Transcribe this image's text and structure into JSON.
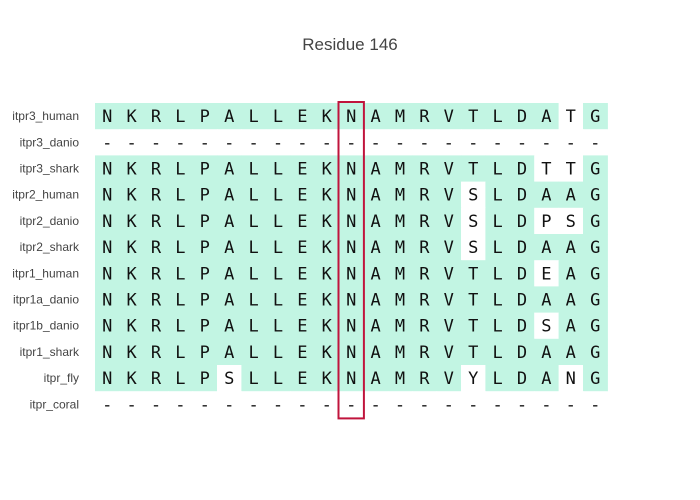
{
  "chart_data": {
    "type": "heatmap",
    "title": "Residue 146",
    "highlight_column": 10,
    "highlight_color": "#c0143c",
    "match_color": "#c2f5e3",
    "mismatch_color": "#ffffff",
    "sequences": [
      {
        "name": "itpr3_human",
        "residues": [
          "N",
          "K",
          "R",
          "L",
          "P",
          "A",
          "L",
          "L",
          "E",
          "K",
          "N",
          "A",
          "M",
          "R",
          "V",
          "T",
          "L",
          "D",
          "A",
          "T",
          "G"
        ],
        "match": [
          1,
          1,
          1,
          1,
          1,
          1,
          1,
          1,
          1,
          1,
          1,
          1,
          1,
          1,
          1,
          1,
          1,
          1,
          1,
          0,
          1
        ]
      },
      {
        "name": "itpr3_danio",
        "residues": [
          "-",
          "-",
          "-",
          "-",
          "-",
          "-",
          "-",
          "-",
          "-",
          "-",
          "-",
          "-",
          "-",
          "-",
          "-",
          "-",
          "-",
          "-",
          "-",
          "-",
          "-"
        ],
        "match": [
          0,
          0,
          0,
          0,
          0,
          0,
          0,
          0,
          0,
          0,
          0,
          0,
          0,
          0,
          0,
          0,
          0,
          0,
          0,
          0,
          0
        ]
      },
      {
        "name": "itpr3_shark",
        "residues": [
          "N",
          "K",
          "R",
          "L",
          "P",
          "A",
          "L",
          "L",
          "E",
          "K",
          "N",
          "A",
          "M",
          "R",
          "V",
          "T",
          "L",
          "D",
          "T",
          "T",
          "G"
        ],
        "match": [
          1,
          1,
          1,
          1,
          1,
          1,
          1,
          1,
          1,
          1,
          1,
          1,
          1,
          1,
          1,
          1,
          1,
          1,
          0,
          0,
          1
        ]
      },
      {
        "name": "itpr2_human",
        "residues": [
          "N",
          "K",
          "R",
          "L",
          "P",
          "A",
          "L",
          "L",
          "E",
          "K",
          "N",
          "A",
          "M",
          "R",
          "V",
          "S",
          "L",
          "D",
          "A",
          "A",
          "G"
        ],
        "match": [
          1,
          1,
          1,
          1,
          1,
          1,
          1,
          1,
          1,
          1,
          1,
          1,
          1,
          1,
          1,
          0,
          1,
          1,
          1,
          1,
          1
        ]
      },
      {
        "name": "itpr2_danio",
        "residues": [
          "N",
          "K",
          "R",
          "L",
          "P",
          "A",
          "L",
          "L",
          "E",
          "K",
          "N",
          "A",
          "M",
          "R",
          "V",
          "S",
          "L",
          "D",
          "P",
          "S",
          "G"
        ],
        "match": [
          1,
          1,
          1,
          1,
          1,
          1,
          1,
          1,
          1,
          1,
          1,
          1,
          1,
          1,
          1,
          0,
          1,
          1,
          0,
          0,
          1
        ]
      },
      {
        "name": "itpr2_shark",
        "residues": [
          "N",
          "K",
          "R",
          "L",
          "P",
          "A",
          "L",
          "L",
          "E",
          "K",
          "N",
          "A",
          "M",
          "R",
          "V",
          "S",
          "L",
          "D",
          "A",
          "A",
          "G"
        ],
        "match": [
          1,
          1,
          1,
          1,
          1,
          1,
          1,
          1,
          1,
          1,
          1,
          1,
          1,
          1,
          1,
          0,
          1,
          1,
          1,
          1,
          1
        ]
      },
      {
        "name": "itpr1_human",
        "residues": [
          "N",
          "K",
          "R",
          "L",
          "P",
          "A",
          "L",
          "L",
          "E",
          "K",
          "N",
          "A",
          "M",
          "R",
          "V",
          "T",
          "L",
          "D",
          "E",
          "A",
          "G"
        ],
        "match": [
          1,
          1,
          1,
          1,
          1,
          1,
          1,
          1,
          1,
          1,
          1,
          1,
          1,
          1,
          1,
          1,
          1,
          1,
          0,
          1,
          1
        ]
      },
      {
        "name": "itpr1a_danio",
        "residues": [
          "N",
          "K",
          "R",
          "L",
          "P",
          "A",
          "L",
          "L",
          "E",
          "K",
          "N",
          "A",
          "M",
          "R",
          "V",
          "T",
          "L",
          "D",
          "A",
          "A",
          "G"
        ],
        "match": [
          1,
          1,
          1,
          1,
          1,
          1,
          1,
          1,
          1,
          1,
          1,
          1,
          1,
          1,
          1,
          1,
          1,
          1,
          1,
          1,
          1
        ]
      },
      {
        "name": "itpr1b_danio",
        "residues": [
          "N",
          "K",
          "R",
          "L",
          "P",
          "A",
          "L",
          "L",
          "E",
          "K",
          "N",
          "A",
          "M",
          "R",
          "V",
          "T",
          "L",
          "D",
          "S",
          "A",
          "G"
        ],
        "match": [
          1,
          1,
          1,
          1,
          1,
          1,
          1,
          1,
          1,
          1,
          1,
          1,
          1,
          1,
          1,
          1,
          1,
          1,
          0,
          1,
          1
        ]
      },
      {
        "name": "itpr1_shark",
        "residues": [
          "N",
          "K",
          "R",
          "L",
          "P",
          "A",
          "L",
          "L",
          "E",
          "K",
          "N",
          "A",
          "M",
          "R",
          "V",
          "T",
          "L",
          "D",
          "A",
          "A",
          "G"
        ],
        "match": [
          1,
          1,
          1,
          1,
          1,
          1,
          1,
          1,
          1,
          1,
          1,
          1,
          1,
          1,
          1,
          1,
          1,
          1,
          1,
          1,
          1
        ]
      },
      {
        "name": "itpr_fly",
        "residues": [
          "N",
          "K",
          "R",
          "L",
          "P",
          "S",
          "L",
          "L",
          "E",
          "K",
          "N",
          "A",
          "M",
          "R",
          "V",
          "Y",
          "L",
          "D",
          "A",
          "N",
          "G"
        ],
        "match": [
          1,
          1,
          1,
          1,
          1,
          0,
          1,
          1,
          1,
          1,
          1,
          1,
          1,
          1,
          1,
          0,
          1,
          1,
          1,
          0,
          1
        ]
      },
      {
        "name": "itpr_coral",
        "residues": [
          "-",
          "-",
          "-",
          "-",
          "-",
          "-",
          "-",
          "-",
          "-",
          "-",
          "-",
          "-",
          "-",
          "-",
          "-",
          "-",
          "-",
          "-",
          "-",
          "-",
          "-"
        ],
        "match": [
          0,
          0,
          0,
          0,
          0,
          0,
          0,
          0,
          0,
          0,
          0,
          0,
          0,
          0,
          0,
          0,
          0,
          0,
          0,
          0,
          0
        ]
      }
    ]
  }
}
